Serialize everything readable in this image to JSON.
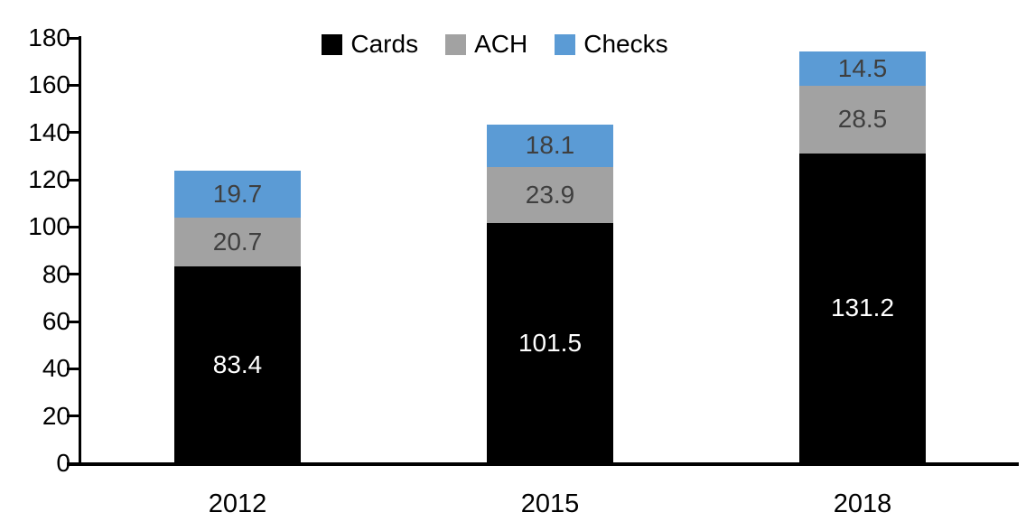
{
  "chart_data": {
    "type": "bar",
    "stacked": true,
    "title": "",
    "categories": [
      "2012",
      "2015",
      "2018"
    ],
    "series": [
      {
        "name": "Cards",
        "color": "#000000",
        "label_color": "#ffffff",
        "values": [
          83.4,
          101.5,
          131.2
        ]
      },
      {
        "name": "ACH",
        "color": "#A2A2A2",
        "label_color": "#3f3f3f",
        "values": [
          20.7,
          23.9,
          28.5
        ]
      },
      {
        "name": "Checks",
        "color": "#5B9BD5",
        "label_color": "#3f3f3f",
        "values": [
          19.7,
          18.1,
          14.5
        ]
      }
    ],
    "ylim": [
      0,
      180
    ],
    "yticks": [
      0,
      20,
      40,
      60,
      80,
      100,
      120,
      140,
      160,
      180
    ],
    "legend_position": "top",
    "legend_labels": [
      "Cards",
      "ACH",
      "Checks"
    ],
    "grid": false,
    "value_label_decimals": 1
  }
}
